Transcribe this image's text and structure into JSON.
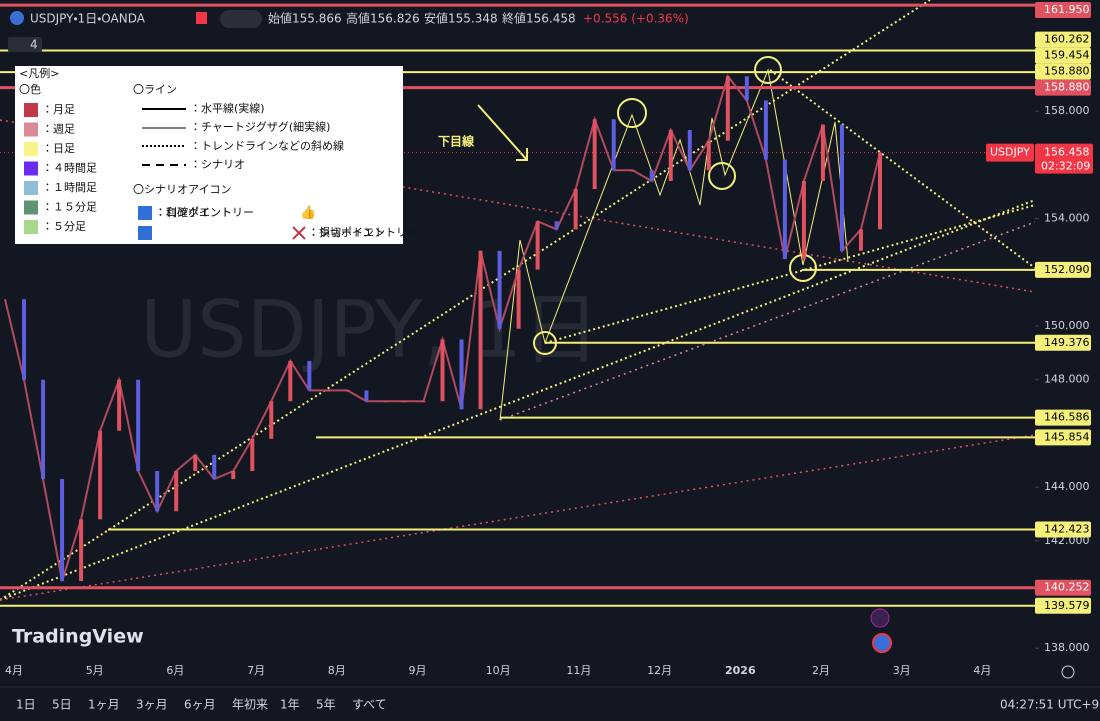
{
  "header": {
    "symbol": "USDJPY・1日・OANDA",
    "open": "始値155.866",
    "high": "高値156.826",
    "low": "安値155.348",
    "close": "終値156.458",
    "change": "+0.556 (+0.36%)",
    "indicator_count": "4"
  },
  "chart_data": {
    "type": "candle-line",
    "watermark": "USDJPY, 1日",
    "annotation": "下目線",
    "brand": "TradingView",
    "ylim": [
      137.2,
      162.1
    ],
    "yticks": [
      {
        "value": 158,
        "label": "158.000"
      },
      {
        "value": 154,
        "label": "154.000"
      },
      {
        "value": 150,
        "label": "150.000"
      },
      {
        "value": 148,
        "label": "148.000"
      },
      {
        "value": 144,
        "label": "144.000"
      },
      {
        "value": 142,
        "label": "142.000"
      },
      {
        "value": 138,
        "label": "138.000"
      }
    ],
    "months": [
      "4月",
      "5月",
      "6月",
      "7月",
      "8月",
      "9月",
      "10月",
      "11月",
      "12月",
      "2026",
      "2月",
      "3月",
      "4月"
    ],
    "series": [
      {
        "name": "USDJPY",
        "color": "#b04a5e",
        "values": [
          151.0,
          148.0,
          144.3,
          140.5,
          142.8,
          146.1,
          148.0,
          144.6,
          143.1,
          144.6,
          145.2,
          144.3,
          144.6,
          145.8,
          147.2,
          148.7,
          147.6,
          147.6,
          147.6,
          147.2,
          147.2,
          147.2,
          147.2,
          149.5,
          146.9,
          152.8,
          149.9,
          152.1,
          153.9,
          153.6,
          155.1,
          157.7,
          155.8,
          155.8,
          155.4,
          157.3,
          155.8,
          156.9,
          159.3,
          158.4,
          156.2,
          152.5,
          155.4,
          157.5,
          152.8,
          153.6,
          156.458
        ]
      }
    ],
    "last_price": {
      "name": "USDJPY",
      "value": 156.458,
      "label": "156.458",
      "countdown": "02:32:09"
    },
    "levels": [
      {
        "value": 161.95,
        "label": "161.950",
        "color": "#e05260"
      },
      {
        "value": 160.262,
        "label": "160.262",
        "color": "#f5f07a"
      },
      {
        "value": 159.454,
        "label": "159.454",
        "color": "#f5f07a"
      },
      {
        "value": 158.88,
        "label": "158.880",
        "color": "#f5f07a"
      },
      {
        "value": 158.88,
        "label": "158.880",
        "color": "#e05260"
      },
      {
        "value": 152.09,
        "label": "152.090",
        "color": "#f5f07a"
      },
      {
        "value": 149.376,
        "label": "149.376",
        "color": "#f5f07a"
      },
      {
        "value": 146.586,
        "label": "146.586",
        "color": "#f5f07a"
      },
      {
        "value": 145.854,
        "label": "145.854",
        "color": "#f5f07a"
      },
      {
        "value": 142.423,
        "label": "142.423",
        "color": "#f5f07a"
      },
      {
        "value": 140.252,
        "label": "140.252",
        "color": "#e05260"
      },
      {
        "value": 139.579,
        "label": "139.579",
        "color": "#f5f07a"
      }
    ]
  },
  "legend": {
    "title": "<凡例>",
    "colors_title": "〇色",
    "colors": [
      {
        "label": "：月足",
        "color": "#c0394b"
      },
      {
        "label": "：週足",
        "color": "#d98a94"
      },
      {
        "label": "：日足",
        "color": "#f7f58a"
      },
      {
        "label": "：４時間足",
        "color": "#6a2cf0"
      },
      {
        "label": "：１時間足",
        "color": "#8fbcd9"
      },
      {
        "label": "：１５分足",
        "color": "#5e9474"
      },
      {
        "label": "：５分足",
        "color": "#a8d88c"
      }
    ],
    "lines_title": "〇ライン",
    "lines": [
      "：水平線(実線)",
      "：チャートジグザグ(細実線)",
      "：トレンドラインなどの斜め線",
      "：シナリオ"
    ],
    "icons_title": "〇シナリオアイコン",
    "icons": [
      "：ロングエントリー",
      "：ショートエントリー",
      "：利確ポイント",
      "：損切ポイント"
    ]
  },
  "footer": {
    "ranges": [
      "1日",
      "5日",
      "1ヶ月",
      "3ヶ月",
      "6ヶ月",
      "年初来",
      "1年",
      "5年",
      "すべて"
    ],
    "clock": "04:27:51 UTC+9"
  }
}
